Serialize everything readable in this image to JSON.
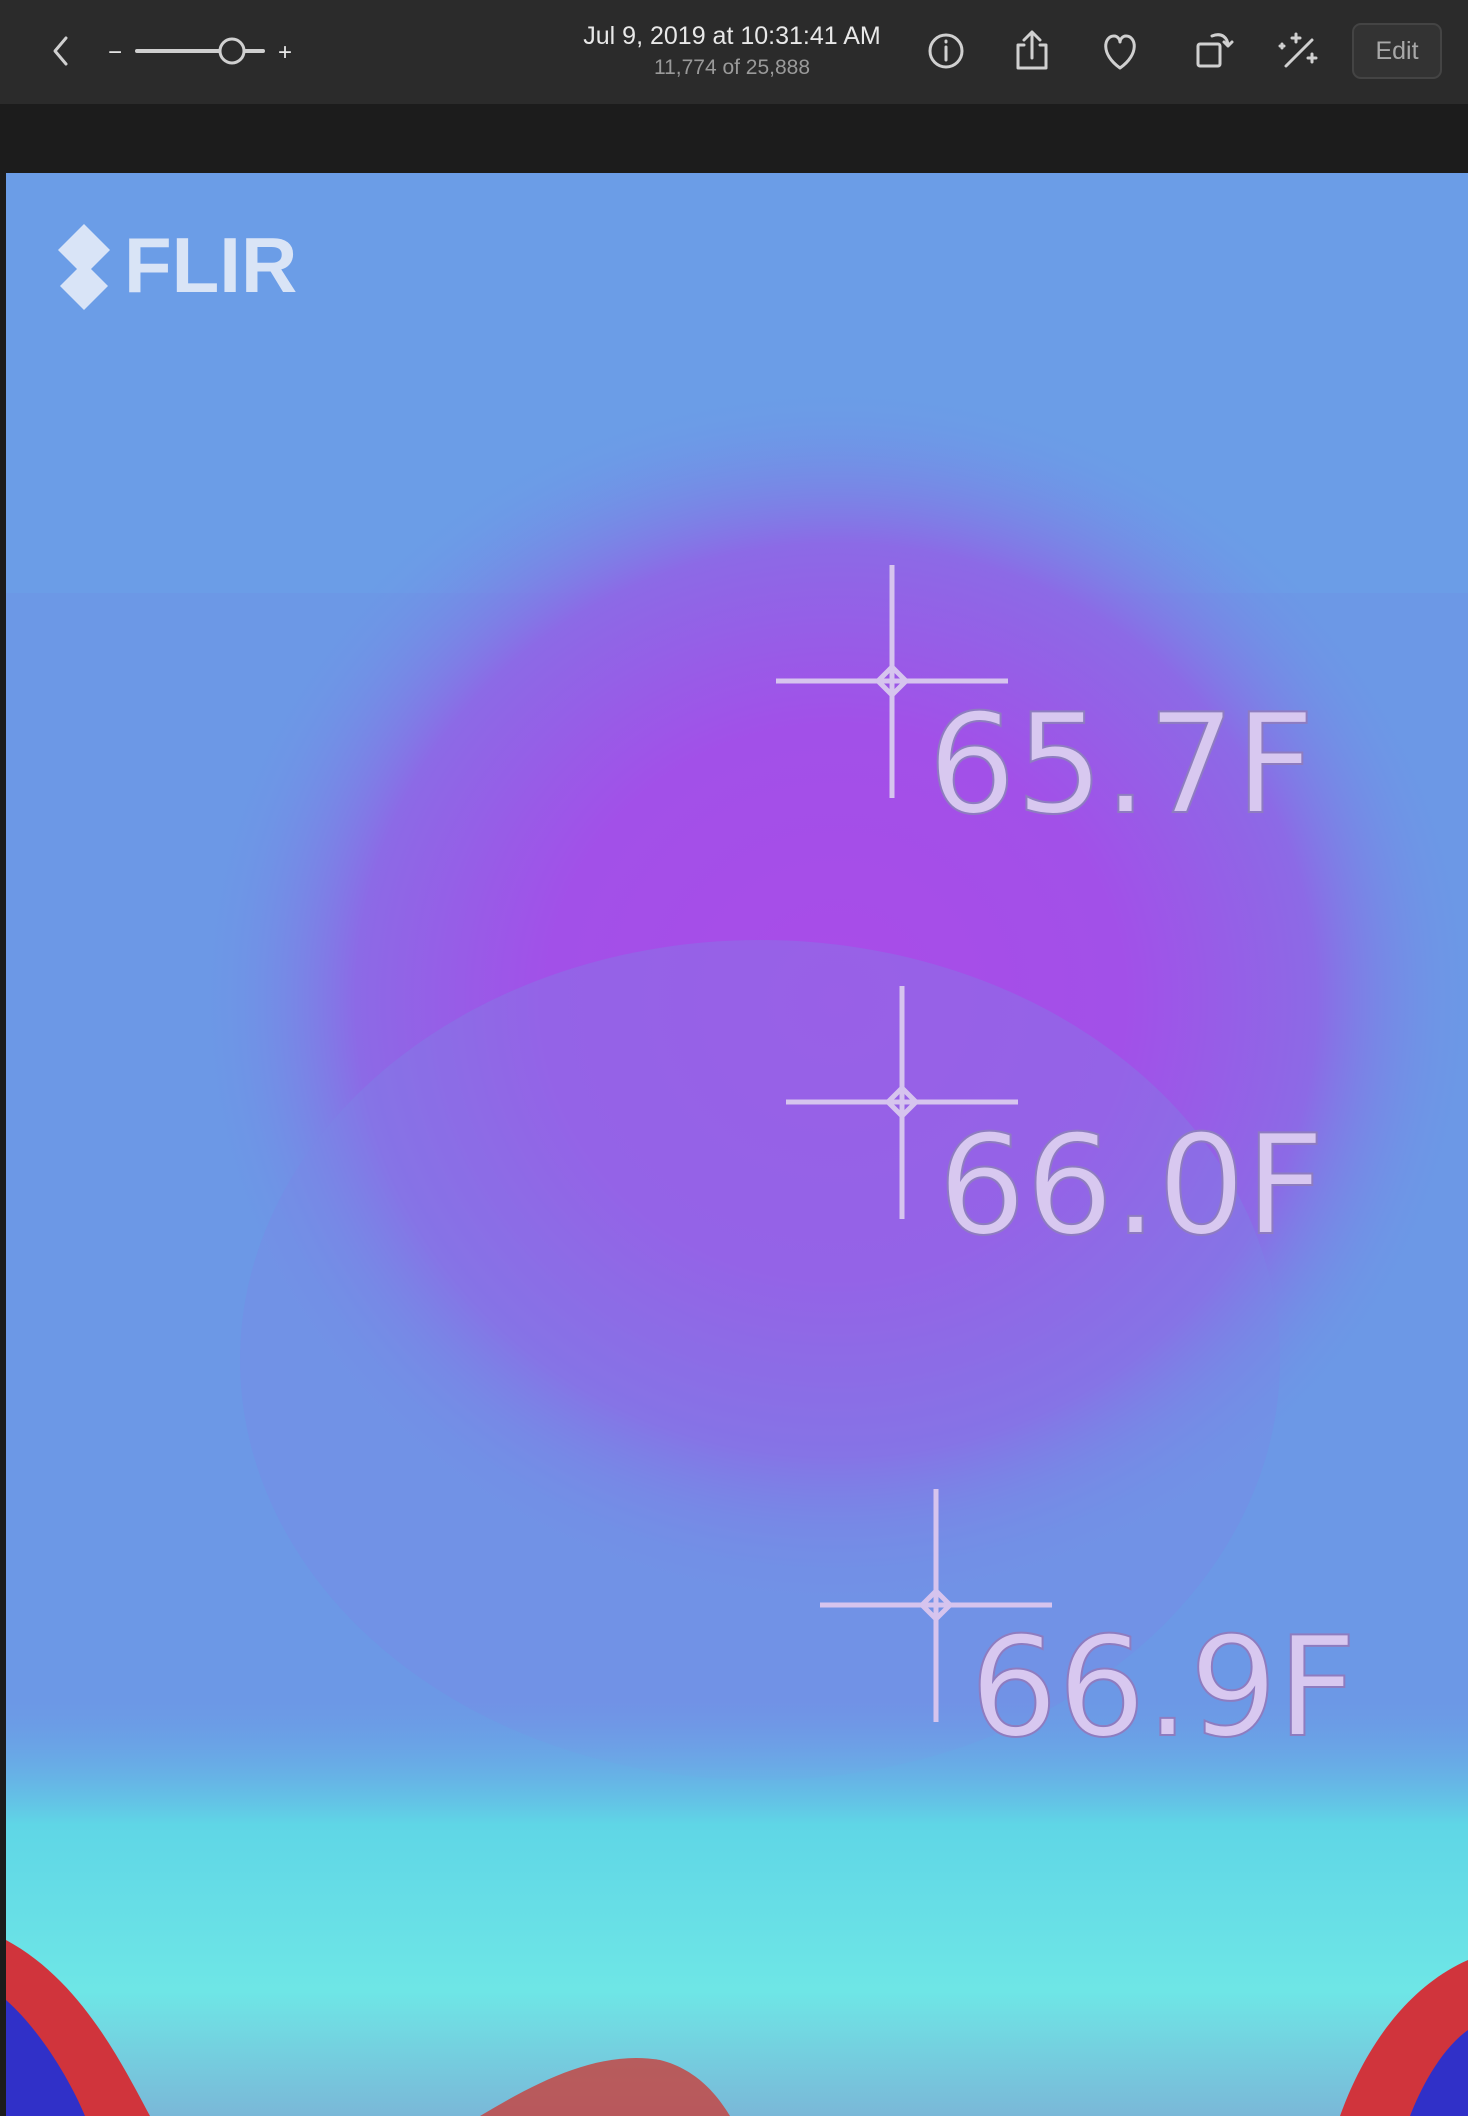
{
  "toolbar": {
    "title": "Jul 9, 2019 at 10:31:41 AM",
    "subtitle": "11,774 of 25,888",
    "zoom_minus": "−",
    "zoom_plus": "+",
    "edit": "Edit"
  },
  "photo": {
    "logo": "FLIR",
    "readings": [
      "65.7F",
      "66.0F",
      "66.9F"
    ]
  }
}
